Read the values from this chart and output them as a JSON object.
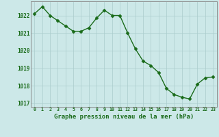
{
  "hours": [
    0,
    1,
    2,
    3,
    4,
    5,
    6,
    7,
    8,
    9,
    10,
    11,
    12,
    13,
    14,
    15,
    16,
    17,
    18,
    19,
    20,
    21,
    22,
    23
  ],
  "pressure": [
    1022.1,
    1022.5,
    1022.0,
    1021.7,
    1021.4,
    1021.1,
    1021.1,
    1021.3,
    1021.85,
    1022.3,
    1022.0,
    1022.0,
    1021.0,
    1020.1,
    1019.4,
    1019.15,
    1018.75,
    1017.85,
    1017.5,
    1017.35,
    1017.25,
    1018.1,
    1018.45,
    1018.5
  ],
  "ylim": [
    1016.8,
    1022.8
  ],
  "yticks": [
    1017,
    1018,
    1019,
    1020,
    1021,
    1022
  ],
  "xlabel": "Graphe pression niveau de la mer (hPa)",
  "line_color": "#1a6b1a",
  "marker_color": "#1a6b1a",
  "bg_color": "#cce8e8",
  "grid_color": "#aacccc",
  "text_color": "#1a6b1a",
  "spine_color": "#888888"
}
